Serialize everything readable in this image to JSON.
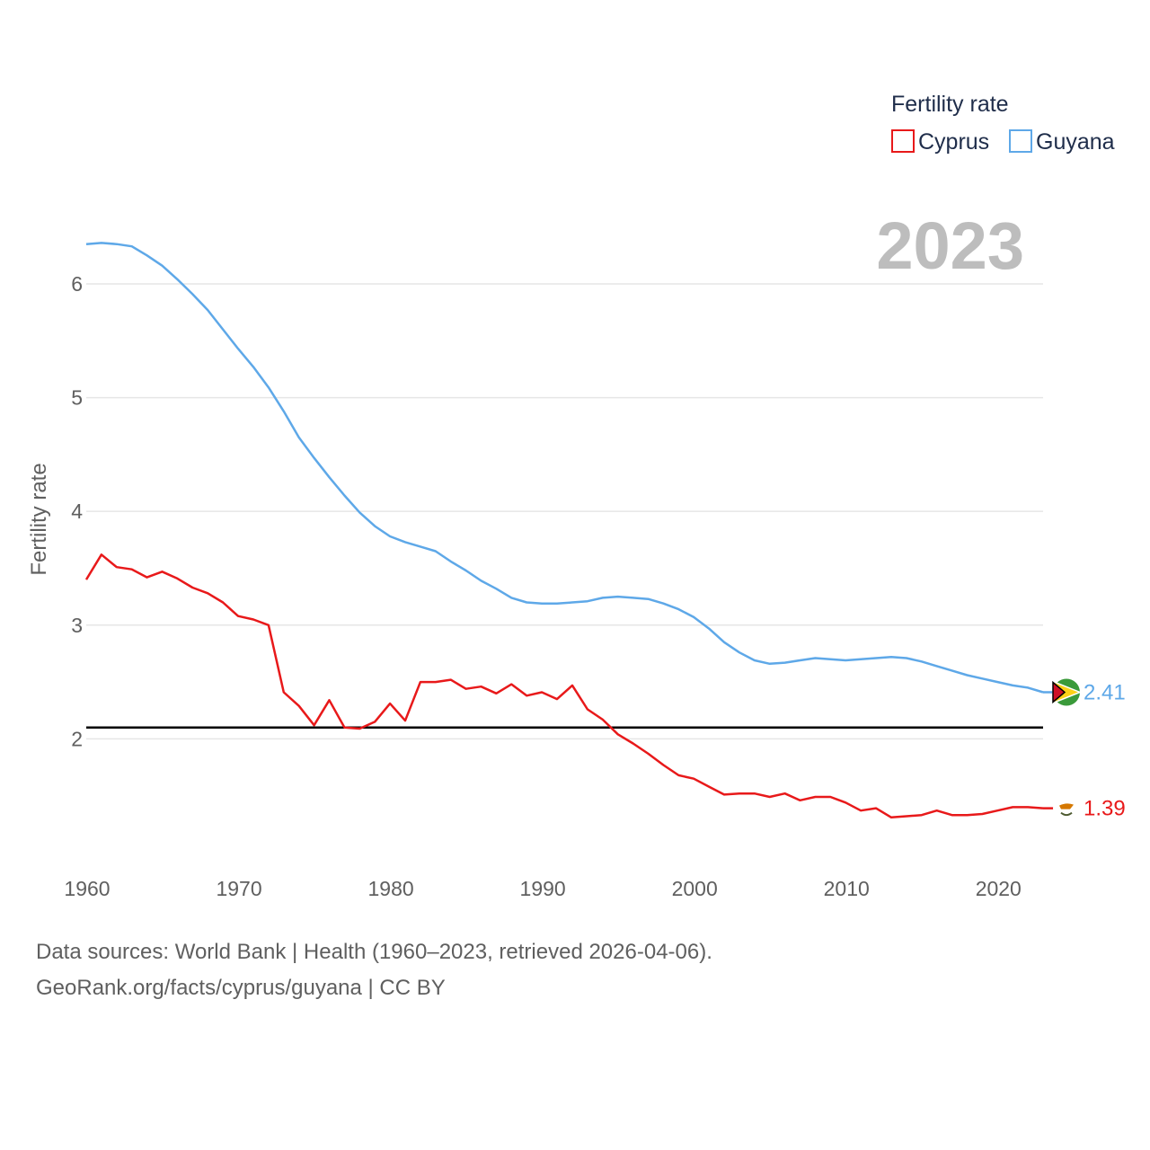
{
  "chart_data": {
    "type": "line",
    "legend_title": "Fertility rate",
    "ylabel": "Fertility rate",
    "xlabel": "",
    "year_display": "2023",
    "xlim": [
      1960,
      2023
    ],
    "ylim": [
      1.0,
      6.6
    ],
    "x_ticks": [
      1960,
      1970,
      1980,
      1990,
      2000,
      2010,
      2020
    ],
    "y_ticks": [
      2,
      3,
      4,
      5,
      6
    ],
    "reference_line": 2.1,
    "legend_placement": "top-right",
    "x": [
      1960,
      1961,
      1962,
      1963,
      1964,
      1965,
      1966,
      1967,
      1968,
      1969,
      1970,
      1971,
      1972,
      1973,
      1974,
      1975,
      1976,
      1977,
      1978,
      1979,
      1980,
      1981,
      1982,
      1983,
      1984,
      1985,
      1986,
      1987,
      1988,
      1989,
      1990,
      1991,
      1992,
      1993,
      1994,
      1995,
      1996,
      1997,
      1998,
      1999,
      2000,
      2001,
      2002,
      2003,
      2004,
      2005,
      2006,
      2007,
      2008,
      2009,
      2010,
      2011,
      2012,
      2013,
      2014,
      2015,
      2016,
      2017,
      2018,
      2019,
      2020,
      2021,
      2022,
      2023
    ],
    "series": [
      {
        "name": "Cyprus",
        "color": "#e8191a",
        "end_label": "1.39",
        "flag_icon": "cyprus-flag-icon",
        "values": [
          3.4,
          3.62,
          3.51,
          3.49,
          3.42,
          3.47,
          3.41,
          3.33,
          3.28,
          3.2,
          3.08,
          3.05,
          3.0,
          2.41,
          2.29,
          2.12,
          2.34,
          2.1,
          2.09,
          2.15,
          2.31,
          2.16,
          2.5,
          2.5,
          2.52,
          2.44,
          2.46,
          2.4,
          2.48,
          2.38,
          2.41,
          2.35,
          2.47,
          2.26,
          2.17,
          2.04,
          1.96,
          1.87,
          1.77,
          1.68,
          1.65,
          1.58,
          1.51,
          1.52,
          1.52,
          1.49,
          1.52,
          1.46,
          1.49,
          1.49,
          1.44,
          1.37,
          1.39,
          1.31,
          1.32,
          1.33,
          1.37,
          1.33,
          1.33,
          1.34,
          1.37,
          1.4,
          1.4,
          1.39
        ]
      },
      {
        "name": "Guyana",
        "color": "#5ea8e8",
        "end_label": "2.41",
        "flag_icon": "guyana-flag-icon",
        "values": [
          6.35,
          6.36,
          6.35,
          6.33,
          6.25,
          6.16,
          6.04,
          5.91,
          5.77,
          5.6,
          5.43,
          5.27,
          5.09,
          4.88,
          4.65,
          4.47,
          4.3,
          4.14,
          3.99,
          3.87,
          3.78,
          3.73,
          3.69,
          3.65,
          3.56,
          3.48,
          3.39,
          3.32,
          3.24,
          3.2,
          3.19,
          3.19,
          3.2,
          3.21,
          3.24,
          3.25,
          3.24,
          3.23,
          3.19,
          3.14,
          3.07,
          2.97,
          2.85,
          2.76,
          2.69,
          2.66,
          2.67,
          2.69,
          2.71,
          2.7,
          2.69,
          2.7,
          2.71,
          2.72,
          2.71,
          2.68,
          2.64,
          2.6,
          2.56,
          2.53,
          2.5,
          2.47,
          2.45,
          2.41
        ]
      }
    ]
  },
  "footer": {
    "source_line": "Data sources: World Bank | Health (1960–2023, retrieved 2026-04-06).",
    "credit_line": "GeoRank.org/facts/cyprus/guyana | CC BY"
  }
}
